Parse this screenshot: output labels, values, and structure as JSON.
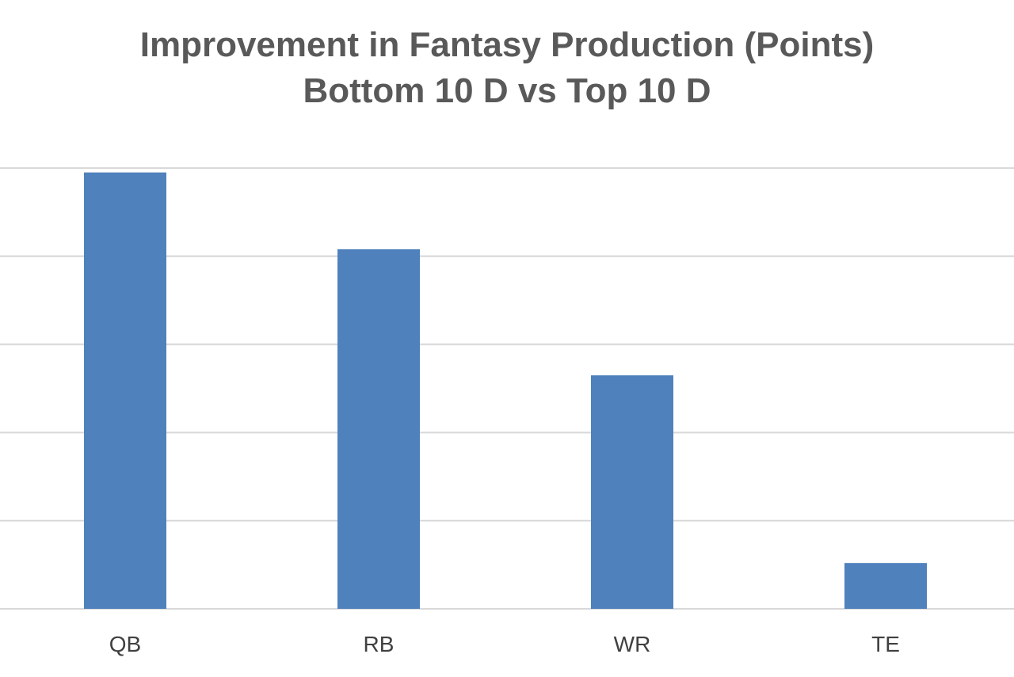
{
  "chart_data": {
    "type": "bar",
    "title": "Improvement in Fantasy Production (Points)",
    "subtitle": "Bottom 10 D vs Top 10 D",
    "categories": [
      "QB",
      "RB",
      "WR",
      "TE"
    ],
    "values": [
      4.95,
      4.08,
      2.65,
      0.52
    ],
    "ylim": [
      0,
      5
    ],
    "grid": true,
    "gridline_values": [
      1,
      2,
      3,
      4,
      5
    ],
    "bar_color": "#4F81BD",
    "grid_color": "#D9D9D9",
    "xlabel": "",
    "ylabel": ""
  }
}
